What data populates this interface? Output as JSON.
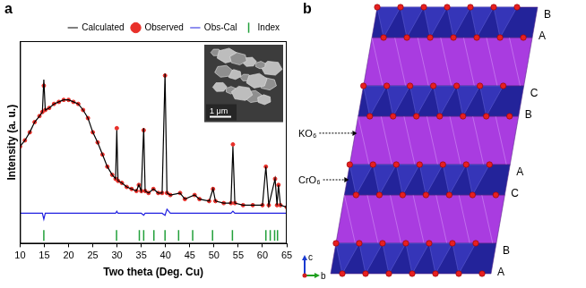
{
  "panel_labels": [
    "a",
    "b"
  ],
  "chart_data": {
    "type": "scatter",
    "x_label": "Two theta (Deg. Cu)",
    "y_label": "Intensity (a. u.)",
    "xlim": [
      10,
      65
    ],
    "xticks": [
      10,
      15,
      20,
      25,
      30,
      35,
      40,
      45,
      50,
      55,
      60,
      65
    ],
    "ylim": [
      0,
      100
    ],
    "tick_labels": "x",
    "grid": false,
    "legend": "top",
    "annotations": [
      "1 μm"
    ],
    "x": [
      10,
      11,
      12,
      13,
      14,
      14.6,
      14.9,
      15.2,
      16,
      17,
      18,
      19,
      20,
      21,
      22,
      23,
      24,
      25,
      26,
      27,
      28,
      29,
      29.7,
      29.95,
      30.2,
      31,
      32,
      33,
      34,
      34.5,
      35,
      35.5,
      35.8,
      36.5,
      37.5,
      38.5,
      39.3,
      39.9,
      40.3,
      41,
      43,
      44,
      46,
      47,
      49,
      49.8,
      50.3,
      52,
      53.5,
      53.9,
      54.3,
      56,
      58,
      60,
      60.7,
      61.3,
      62.6,
      63.0,
      63.3,
      63.7,
      65
    ],
    "series": [
      {
        "name": "Observed",
        "type": "scatter",
        "marker": "circle",
        "color": "#e8302a",
        "values": [
          48,
          51,
          55,
          60,
          63,
          65,
          78,
          66,
          67,
          69,
          70,
          71,
          71,
          70,
          69,
          66,
          62,
          55,
          50,
          44,
          38,
          34,
          32,
          57,
          31,
          30,
          28,
          27,
          26,
          29,
          26,
          56,
          26,
          25,
          27,
          25,
          25,
          83,
          25,
          24,
          25,
          22,
          24,
          22,
          21,
          27,
          21,
          20,
          20,
          49,
          20,
          19,
          19,
          19,
          38,
          19,
          32,
          19,
          29,
          19,
          18
        ]
      },
      {
        "name": "Calculated",
        "type": "line",
        "line_style": "solid",
        "color": "#000000",
        "values": [
          48,
          51,
          55,
          60,
          63,
          65,
          81,
          66,
          67,
          69,
          70,
          71,
          71,
          70,
          69,
          66,
          62,
          55,
          50,
          44,
          38,
          34,
          32,
          56,
          31,
          30,
          28,
          27,
          26,
          29,
          26,
          57,
          26,
          25,
          27,
          25,
          25,
          84,
          25,
          24,
          25,
          22,
          24,
          22,
          21,
          27,
          21,
          20,
          20,
          48,
          20,
          19,
          19,
          19,
          38,
          19,
          32,
          19,
          29,
          19,
          18
        ]
      },
      {
        "name": "Obs-Cal",
        "type": "line",
        "line_style": "solid",
        "color": "#2020e0",
        "values": [
          15,
          15,
          15,
          15,
          15,
          15,
          12,
          15,
          15,
          15,
          15,
          15,
          15,
          15,
          15,
          15,
          15,
          15,
          15,
          15,
          15,
          15,
          15,
          16,
          15,
          15,
          15,
          15,
          15,
          15,
          15,
          14,
          15,
          15,
          15,
          15,
          15,
          14,
          17,
          15,
          15,
          15,
          15,
          15,
          15,
          15,
          15,
          15,
          15,
          16,
          15,
          15,
          15,
          15,
          15,
          15,
          15,
          15,
          15,
          15,
          15
        ]
      },
      {
        "name": "Index",
        "type": "scatter",
        "marker": "line",
        "color": "#22a03a",
        "x": [
          14.9,
          29.9,
          34.6,
          35.5,
          37.6,
          39.9,
          42.7,
          45.6,
          49.7,
          53.8,
          60.7,
          61.6,
          62.5,
          63.1
        ],
        "values": [
          4,
          4,
          4,
          4,
          4,
          4,
          4,
          4,
          4,
          4,
          4,
          4,
          4,
          4
        ]
      }
    ]
  },
  "panel_b": {
    "stacking": [
      [
        "B",
        "A"
      ],
      [
        "C",
        "B"
      ],
      [
        "A",
        "C"
      ],
      [
        "B",
        "A"
      ]
    ],
    "layers": [
      "KO₆",
      "CrO₆"
    ],
    "axes": [
      "c",
      "b"
    ]
  }
}
